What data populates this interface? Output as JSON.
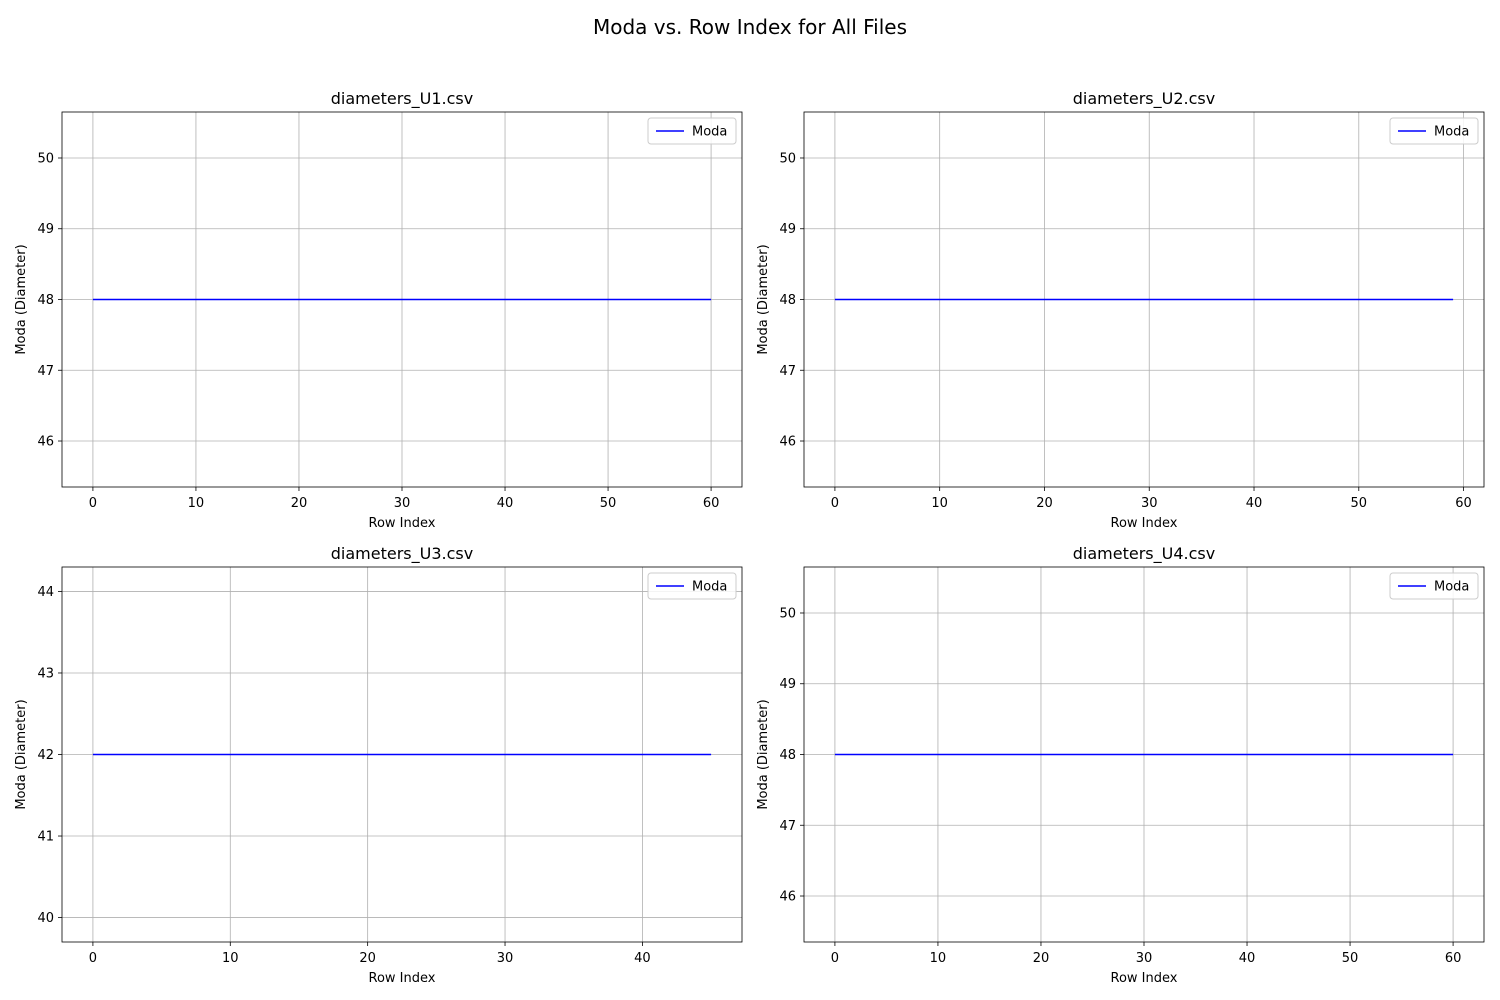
{
  "figure": {
    "title": "Moda vs. Row Index for All Files"
  },
  "colors": {
    "line": "#0000ff",
    "grid": "#b0b0b0",
    "axes": "#000000"
  },
  "chart_data": [
    {
      "type": "line",
      "title": "diameters_U1.csv",
      "xlabel": "Row Index",
      "ylabel": "Moda (Diameter)",
      "xlim": [
        -3,
        63
      ],
      "ylim": [
        45.35,
        50.65
      ],
      "xticks": [
        0,
        10,
        20,
        30,
        40,
        50,
        60
      ],
      "yticks": [
        46,
        47,
        48,
        49,
        50
      ],
      "grid": true,
      "legend": "top-right",
      "series": [
        {
          "name": "Moda",
          "x": [
            0,
            60
          ],
          "y": [
            48,
            48
          ]
        }
      ]
    },
    {
      "type": "line",
      "title": "diameters_U2.csv",
      "xlabel": "Row Index",
      "ylabel": "Moda (Diameter)",
      "xlim": [
        -2.95,
        61.95
      ],
      "ylim": [
        45.35,
        50.65
      ],
      "xticks": [
        0,
        10,
        20,
        30,
        40,
        50,
        60
      ],
      "yticks": [
        46,
        47,
        48,
        49,
        50
      ],
      "grid": true,
      "legend": "top-right",
      "series": [
        {
          "name": "Moda",
          "x": [
            0,
            59
          ],
          "y": [
            48,
            48
          ]
        }
      ]
    },
    {
      "type": "line",
      "title": "diameters_U3.csv",
      "xlabel": "Row Index",
      "ylabel": "Moda (Diameter)",
      "xlim": [
        -2.25,
        47.25
      ],
      "ylim": [
        39.7,
        44.3
      ],
      "xticks": [
        0,
        10,
        20,
        30,
        40
      ],
      "yticks": [
        40,
        41,
        42,
        43,
        44
      ],
      "grid": true,
      "legend": "top-right",
      "series": [
        {
          "name": "Moda",
          "x": [
            0,
            45
          ],
          "y": [
            42,
            42
          ]
        }
      ]
    },
    {
      "type": "line",
      "title": "diameters_U4.csv",
      "xlabel": "Row Index",
      "ylabel": "Moda (Diameter)",
      "xlim": [
        -3,
        63
      ],
      "ylim": [
        45.35,
        50.65
      ],
      "xticks": [
        0,
        10,
        20,
        30,
        40,
        50,
        60
      ],
      "yticks": [
        46,
        47,
        48,
        49,
        50
      ],
      "grid": true,
      "legend": "top-right",
      "series": [
        {
          "name": "Moda",
          "x": [
            0,
            60
          ],
          "y": [
            48,
            48
          ]
        }
      ]
    }
  ]
}
